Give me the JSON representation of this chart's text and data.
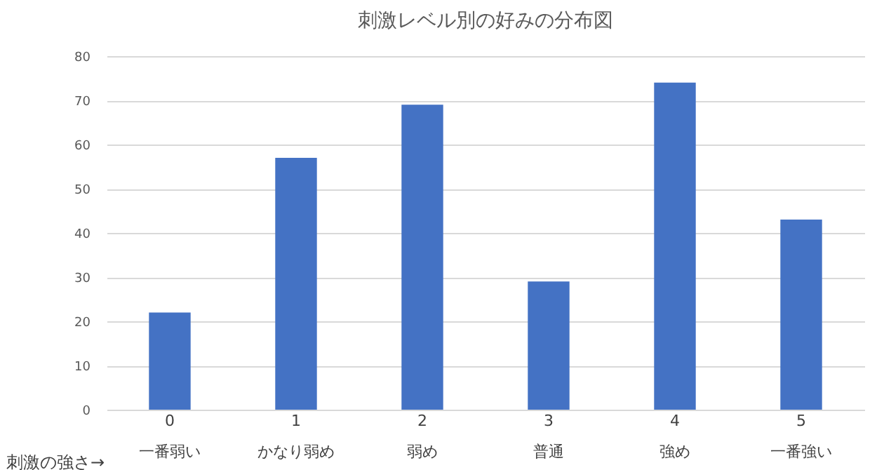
{
  "chart_data": {
    "type": "bar",
    "title": "刺激レベル別の好みの分布図",
    "xlabel": "刺激の強さ→",
    "categories": [
      "0\n一番弱い",
      "1\nかなり弱め",
      "2\n弱め",
      "3\n普通",
      "4\n強め",
      "5\n一番強い"
    ],
    "values": [
      22,
      57,
      69,
      29,
      74,
      43
    ],
    "color": "#4472c4",
    "ylim": [
      0,
      80
    ],
    "yticks": [
      0,
      10,
      20,
      30,
      40,
      50,
      60,
      70,
      80
    ],
    "grid": "y"
  }
}
